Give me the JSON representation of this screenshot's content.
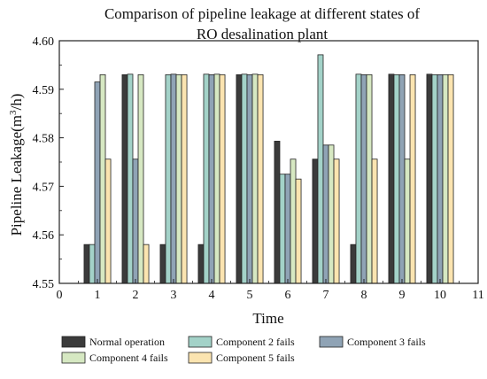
{
  "chart_data": {
    "type": "bar",
    "title_line1": "Comparison of pipeline leakage at different states of",
    "title_line2": "RO desalination plant",
    "xlabel": "Time",
    "ylabel_main": "Pipeline Leakage(m",
    "ylabel_sup": "3",
    "ylabel_end": "/h)",
    "xlim": [
      0,
      11
    ],
    "ylim": [
      4.55,
      4.6
    ],
    "x_ticks": [
      0,
      1,
      2,
      3,
      4,
      5,
      6,
      7,
      8,
      9,
      10,
      11
    ],
    "y_ticks": [
      "4.55",
      "4.56",
      "4.57",
      "4.58",
      "4.59",
      "4.60"
    ],
    "categories": [
      1,
      2,
      3,
      4,
      5,
      6,
      7,
      8,
      9,
      10
    ],
    "series": [
      {
        "name": "Normal operation",
        "color": "#3b3b3b",
        "values": [
          4.558,
          4.593,
          4.558,
          4.558,
          4.593,
          4.5793,
          4.5756,
          4.558,
          4.5931,
          4.5931
        ]
      },
      {
        "name": "Component 2 fails",
        "color": "#a3d2c8",
        "values": [
          4.558,
          4.5931,
          4.593,
          4.5931,
          4.5931,
          4.5725,
          4.5971,
          4.5931,
          4.593,
          4.593
        ]
      },
      {
        "name": "Component 3 fails",
        "color": "#8fa3b5",
        "values": [
          4.5915,
          4.5756,
          4.5931,
          4.593,
          4.593,
          4.5725,
          4.5785,
          4.593,
          4.593,
          4.593
        ]
      },
      {
        "name": "Component 4 fails",
        "color": "#d6e8c2",
        "values": [
          4.593,
          4.593,
          4.593,
          4.5931,
          4.5931,
          4.5756,
          4.5785,
          4.593,
          4.5756,
          4.593
        ]
      },
      {
        "name": "Component 5 fails",
        "color": "#fbe4b0",
        "values": [
          4.5756,
          4.558,
          4.593,
          4.593,
          4.593,
          4.5715,
          4.5756,
          4.5756,
          4.593,
          4.593
        ]
      }
    ],
    "grid": false,
    "legend_position": "bottom"
  }
}
